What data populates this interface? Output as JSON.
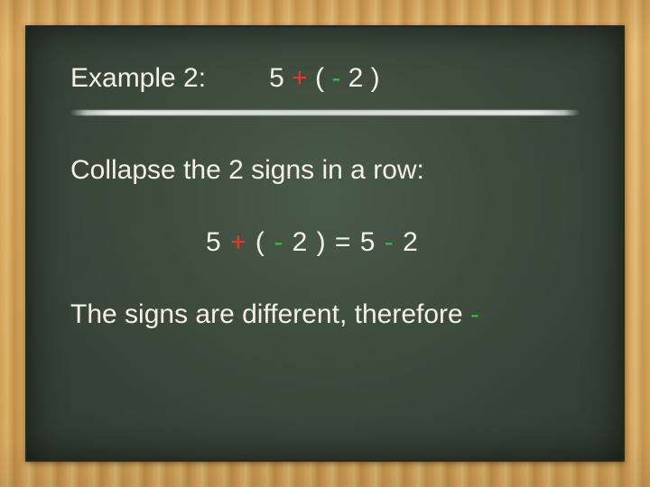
{
  "colors": {
    "text": "#f5f0e6",
    "red": "#e23a2a",
    "green": "#2bbf3a",
    "board_bg_center": "#4a5a4a",
    "board_bg_edge": "#2f3a2f",
    "frame_wood_a": "#d9a85a",
    "frame_wood_b": "#c9964a",
    "chalk_line": "#ffffff"
  },
  "typography": {
    "font_family": "Comic Sans MS / Chalkboard",
    "base_fontsize_pt": 22
  },
  "row1": {
    "label": "Example 2:",
    "expr": {
      "s0": "5 ",
      "s1": "+",
      "s2": " ( ",
      "s3": "-",
      "s4": " 2 )"
    }
  },
  "line2": "Collapse the 2 signs in a row:",
  "line3": {
    "s0": "5 ",
    "s1": "+",
    "s2": " ( ",
    "s3": "-",
    "s4": " 2 ) =  5 ",
    "s5": "-",
    "s6": " 2"
  },
  "line4": {
    "s0": "The signs are different, therefore ",
    "s1": "-"
  }
}
